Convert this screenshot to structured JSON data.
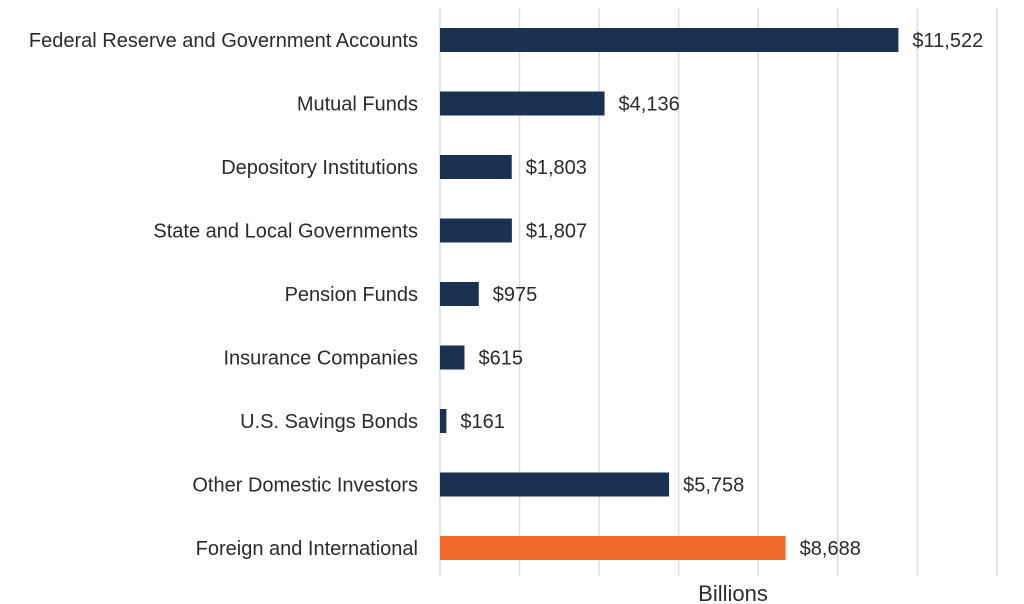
{
  "chart_data": {
    "type": "bar",
    "orientation": "horizontal",
    "categories": [
      "Federal Reserve and Government Accounts",
      "Mutual Funds",
      "Depository Institutions",
      "State and Local Governments",
      "Pension Funds",
      "Insurance Companies",
      "U.S. Savings Bonds",
      "Other Domestic Investors",
      "Foreign and International"
    ],
    "values": [
      11522,
      4136,
      1803,
      1807,
      975,
      615,
      161,
      5758,
      8688
    ],
    "value_labels": [
      "$11,522",
      "$4,136",
      "$1,803",
      "$1,807",
      "$975",
      "$615",
      "$161",
      "$5,758",
      "$8,688"
    ],
    "highlight_index": 8,
    "colors": {
      "default": "#1b3152",
      "highlight": "#f06a2b",
      "grid": "#d6e0ea"
    },
    "xlabel": "Billions",
    "xlim": [
      0,
      14000
    ],
    "grid": true,
    "tick_labels_shown": false
  }
}
